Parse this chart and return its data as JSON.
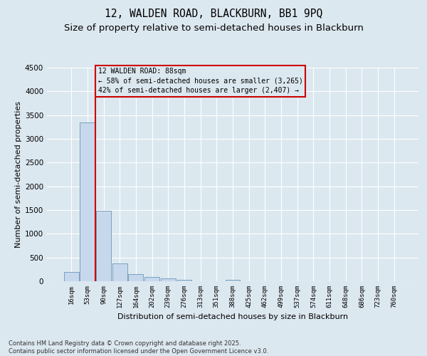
{
  "title_line1": "12, WALDEN ROAD, BLACKBURN, BB1 9PQ",
  "title_line2": "Size of property relative to semi-detached houses in Blackburn",
  "xlabel": "Distribution of semi-detached houses by size in Blackburn",
  "ylabel": "Number of semi-detached properties",
  "footnote": "Contains HM Land Registry data © Crown copyright and database right 2025.\nContains public sector information licensed under the Open Government Licence v3.0.",
  "bin_labels": [
    "16sqm",
    "53sqm",
    "90sqm",
    "127sqm",
    "164sqm",
    "202sqm",
    "239sqm",
    "276sqm",
    "313sqm",
    "351sqm",
    "388sqm",
    "425sqm",
    "462sqm",
    "499sqm",
    "537sqm",
    "574sqm",
    "611sqm",
    "648sqm",
    "686sqm",
    "723sqm",
    "760sqm"
  ],
  "bar_values": [
    190,
    3350,
    1490,
    370,
    150,
    95,
    60,
    30,
    0,
    0,
    35,
    0,
    0,
    0,
    0,
    0,
    0,
    0,
    0,
    0,
    0
  ],
  "bar_color": "#c8d8ec",
  "bar_edge_color": "#6898b8",
  "property_line_color": "#cc0000",
  "annotation_line1": "12 WALDEN ROAD: 88sqm",
  "annotation_line2": "← 58% of semi-detached houses are smaller (3,265)",
  "annotation_line3": "42% of semi-detached houses are larger (2,407) →",
  "ylim": [
    0,
    4500
  ],
  "yticks": [
    0,
    500,
    1000,
    1500,
    2000,
    2500,
    3000,
    3500,
    4000,
    4500
  ],
  "background_color": "#dce8f0",
  "grid_color": "#ffffff",
  "title_fontsize": 10.5,
  "subtitle_fontsize": 9.5,
  "axis_label_fontsize": 8,
  "tick_fontsize": 6.5,
  "footnote_fontsize": 6.0
}
